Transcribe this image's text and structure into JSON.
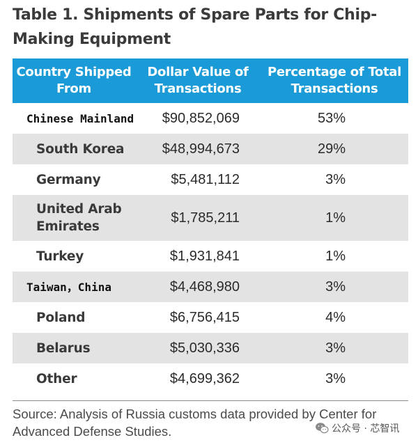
{
  "title": "Table 1. Shipments of Spare Parts for Chip-Making Equipment",
  "headers": {
    "country": "Country Shipped From",
    "dollar": "Dollar Value of Transactions",
    "percent": "Percentage of Total Transactions"
  },
  "rows": [
    {
      "country": "Chinese Mainland",
      "value": "$90,852,069",
      "percent": "53%"
    },
    {
      "country": "South Korea",
      "value": "$48,994,673",
      "percent": "29%"
    },
    {
      "country": "Germany",
      "value": "$5,481,112",
      "percent": "3%"
    },
    {
      "country": "United Arab Emirates",
      "value": "$1,785,211",
      "percent": "1%"
    },
    {
      "country": "Turkey",
      "value": "$1,931,841",
      "percent": "1%"
    },
    {
      "country": "Taiwan，China",
      "value": "$4,468,980",
      "percent": "3%"
    },
    {
      "country": "Poland",
      "value": "$6,756,415",
      "percent": "4%"
    },
    {
      "country": "Belarus",
      "value": "$5,030,336",
      "percent": "3%"
    },
    {
      "country": "Other",
      "value": "$4,699,362",
      "percent": "3%"
    }
  ],
  "source": "Source: Analysis of Russia customs data provided by Center for Advanced Defense Studies.",
  "watermark": {
    "text": "公众号 · 芯智讯",
    "icon": "wechat-icon"
  },
  "colors": {
    "header_bg": "#1a9ad6",
    "shaded_row": "#e3e3e3"
  }
}
